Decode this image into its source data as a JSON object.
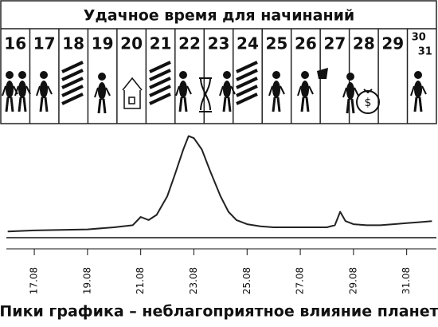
{
  "calendar": {
    "title": "Удачное время для начинаний",
    "days": [
      "16",
      "17",
      "18",
      "19",
      "20",
      "21",
      "22",
      "23",
      "24",
      "25",
      "26",
      "27",
      "28",
      "29"
    ],
    "last_days": [
      "30",
      "31"
    ]
  },
  "chart_data": {
    "type": "line",
    "x": [
      16.0,
      17.0,
      18.0,
      19.0,
      20.0,
      20.7,
      21.0,
      21.3,
      21.6,
      22.0,
      22.3,
      22.6,
      22.8,
      23.0,
      23.3,
      23.6,
      24.0,
      24.3,
      24.6,
      25.0,
      25.5,
      26.0,
      26.5,
      27.0,
      27.5,
      28.0,
      28.3,
      28.5,
      28.7,
      29.0,
      29.5,
      30.0,
      30.5,
      31.0,
      31.5,
      31.95
    ],
    "values": [
      6,
      7,
      7.5,
      8,
      10,
      12,
      20,
      17,
      22,
      40,
      62,
      85,
      98,
      96,
      85,
      65,
      40,
      25,
      17,
      13,
      11,
      10,
      10,
      10,
      10,
      10,
      12,
      25,
      16,
      13,
      12,
      12,
      13,
      14,
      15,
      16
    ],
    "color": "#222222",
    "xlim": [
      15.95,
      31.95
    ],
    "ylim": [
      0,
      100
    ],
    "xticks": [
      {
        "value": 17,
        "label": "17.08"
      },
      {
        "value": 19,
        "label": "19.08"
      },
      {
        "value": 21,
        "label": "21.08"
      },
      {
        "value": 23,
        "label": "23.08"
      },
      {
        "value": 25,
        "label": "25.08"
      },
      {
        "value": 27,
        "label": "27.08"
      },
      {
        "value": 29,
        "label": "29.08"
      },
      {
        "value": 31,
        "label": "31.08"
      }
    ]
  },
  "caption": "Пики графика – неблагоприятное влияние планет"
}
